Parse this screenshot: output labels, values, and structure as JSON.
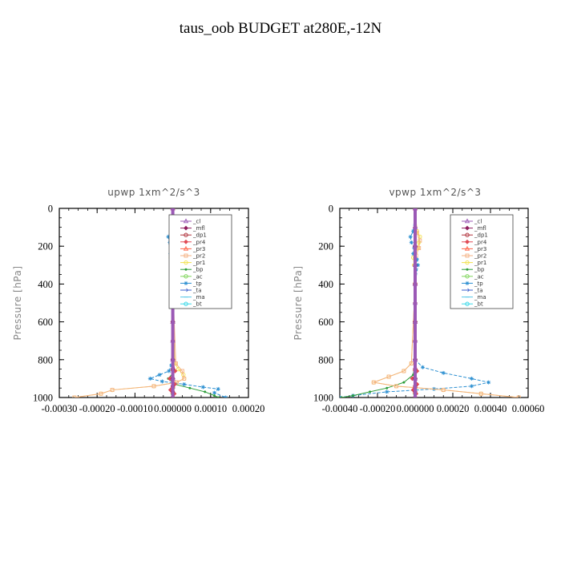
{
  "suptitle": "taus_oob  BUDGET at280E,-12N",
  "colors": {
    "_cl": "#9b59b6",
    "_mfl": "#8e1c5e",
    "_dp1": "#b0303a",
    "_pr4": "#e04a55",
    "_pr3": "#ff6347",
    "_pr2": "#f4b183",
    "_pr1": "#f2e14c",
    "_bp": "#2e9e3a",
    "_ac": "#7fd65a",
    "_tp": "#2b8fd1",
    "_ta": "#3a5fcd",
    "_ma": "#55c6e8",
    "_bt": "#38d8e8"
  },
  "chart_data": [
    {
      "type": "line",
      "title": "upwp   1xm^2/s^3",
      "ylabel": "Pressure [hPa]",
      "y_inverted": true,
      "ylim": [
        0,
        1000
      ],
      "xlim": [
        -0.0003,
        0.0002
      ],
      "xticks": [
        "-0.00030",
        "-0.00020",
        "-0.00010",
        "0.000000",
        "0.00010",
        "0.00020"
      ],
      "yticks": [
        "0",
        "200",
        "400",
        "600",
        "800",
        "1000"
      ],
      "legend_position": "top-right",
      "legend": [
        "_cl",
        "_mfl",
        "_dp1",
        "_pr4",
        "_pr3",
        "_pr2",
        "_pr1",
        "_bp",
        "_ac",
        "_tp",
        "_ta",
        "_ma",
        "_bt"
      ],
      "series": [
        {
          "name": "_cl",
          "x": [
            0,
            0,
            0,
            0,
            0,
            0,
            0,
            0,
            0,
            0,
            0
          ],
          "y": [
            0,
            100,
            200,
            300,
            400,
            500,
            600,
            700,
            800,
            900,
            1000
          ]
        },
        {
          "name": "_mfl",
          "x": [
            0,
            0,
            0,
            0,
            0,
            0,
            0,
            0,
            0,
            0,
            0
          ],
          "y": [
            0,
            100,
            200,
            300,
            400,
            500,
            600,
            700,
            800,
            900,
            1000
          ]
        },
        {
          "name": "_dp1",
          "x": [
            0,
            0,
            0,
            0,
            0,
            0,
            0,
            0,
            0,
            0
          ],
          "y": [
            0,
            200,
            400,
            600,
            800,
            850,
            900,
            940,
            970,
            1000
          ]
        },
        {
          "name": "_pr4",
          "x": [
            0,
            0,
            0,
            0,
            0,
            6e-06,
            -8e-06,
            5e-06,
            -6e-06,
            4e-06,
            0
          ],
          "y": [
            0,
            200,
            400,
            600,
            800,
            860,
            900,
            930,
            960,
            980,
            1000
          ]
        },
        {
          "name": "_pr3",
          "x": [
            0,
            0,
            0,
            0,
            0,
            0,
            0,
            0,
            0,
            0
          ],
          "y": [
            0,
            200,
            400,
            600,
            800,
            850,
            900,
            940,
            970,
            1000
          ]
        },
        {
          "name": "_pr2",
          "x": [
            0,
            5e-06,
            1.2e-05,
            8e-06,
            2e-06,
            0,
            8e-06,
            2.5e-05,
            3e-05,
            1e-05,
            -5e-05,
            -0.00016,
            -0.00019,
            -0.00026
          ],
          "y": [
            0,
            130,
            170,
            210,
            250,
            400,
            820,
            860,
            900,
            920,
            940,
            960,
            980,
            1000
          ]
        },
        {
          "name": "_pr1",
          "x": [
            0,
            5e-06,
            1.2e-05,
            1e-05,
            8e-06,
            -5e-06,
            -2e-06,
            0,
            5e-06,
            1.5e-05,
            2.8e-05,
            3e-05,
            1e-05,
            -5e-05,
            -0.00016,
            -0.00019,
            -0.00026
          ],
          "y": [
            0,
            120,
            150,
            180,
            210,
            260,
            300,
            400,
            820,
            850,
            880,
            900,
            920,
            940,
            960,
            980,
            1000
          ]
        },
        {
          "name": "_bp",
          "x": [
            0,
            0,
            0,
            0,
            0,
            5e-06,
            -1.2e-05,
            5e-06,
            4.5e-05,
            8.5e-05,
            0.00011,
            0.00012
          ],
          "y": [
            0,
            200,
            400,
            600,
            800,
            860,
            900,
            930,
            950,
            970,
            990,
            1000
          ]
        },
        {
          "name": "_ac",
          "x": [
            0,
            0,
            0,
            0,
            0,
            0,
            0,
            0,
            0
          ],
          "y": [
            0,
            200,
            400,
            600,
            800,
            900,
            950,
            980,
            1000
          ]
        },
        {
          "name": "_tp",
          "x": [
            0,
            -5e-06,
            -1.2e-05,
            -8e-06,
            -2e-06,
            -6e-06,
            5e-06,
            8e-06,
            0,
            0,
            -4e-06,
            -1e-05,
            -3.5e-05,
            -6e-05,
            -2.8e-05,
            3e-05,
            8e-05,
            0.00012,
            0.00011,
            0.00014
          ],
          "y": [
            0,
            120,
            150,
            180,
            210,
            240,
            270,
            300,
            400,
            800,
            830,
            860,
            880,
            900,
            915,
            930,
            945,
            955,
            975,
            1000
          ]
        },
        {
          "name": "_ta",
          "x": [
            0,
            0,
            0,
            0,
            0,
            0,
            0,
            0,
            0
          ],
          "y": [
            0,
            200,
            400,
            600,
            800,
            900,
            950,
            980,
            1000
          ]
        },
        {
          "name": "_ma",
          "x": [
            0,
            0,
            0,
            0,
            0,
            0,
            0,
            0,
            0
          ],
          "y": [
            0,
            200,
            400,
            600,
            800,
            900,
            950,
            980,
            1000
          ]
        },
        {
          "name": "_bt",
          "x": [
            0,
            0,
            0,
            0,
            0,
            0,
            0,
            0,
            0
          ],
          "y": [
            0,
            200,
            400,
            600,
            800,
            900,
            950,
            980,
            1000
          ]
        }
      ]
    },
    {
      "type": "line",
      "title": "vpwp   1xm^2/s^3",
      "ylabel": "Pressure [hPa]",
      "y_inverted": true,
      "ylim": [
        0,
        1000
      ],
      "xlim": [
        -0.0004,
        0.0006
      ],
      "xticks": [
        "-0.00040",
        "-0.00020",
        "0.000000",
        "0.00020",
        "0.00040",
        "0.00060"
      ],
      "yticks": [
        "0",
        "200",
        "400",
        "600",
        "800",
        "1000"
      ],
      "legend_position": "top-right",
      "legend": [
        "_cl",
        "_mfl",
        "_dp1",
        "_pr4",
        "_pr3",
        "_pr2",
        "_pr1",
        "_bp",
        "_ac",
        "_tp",
        "_ta",
        "_ma",
        "_bt"
      ],
      "series": [
        {
          "name": "_cl",
          "x": [
            0,
            0,
            0,
            0,
            0,
            0,
            0,
            0,
            0,
            0,
            0
          ],
          "y": [
            0,
            100,
            200,
            300,
            400,
            500,
            600,
            700,
            800,
            900,
            1000
          ]
        },
        {
          "name": "_mfl",
          "x": [
            0,
            0,
            0,
            0,
            0,
            0,
            0,
            0,
            0,
            0,
            0
          ],
          "y": [
            0,
            100,
            200,
            300,
            400,
            500,
            600,
            700,
            800,
            900,
            1000
          ]
        },
        {
          "name": "_dp1",
          "x": [
            0,
            0,
            0,
            0,
            0,
            0,
            0,
            0,
            0,
            0
          ],
          "y": [
            0,
            200,
            400,
            600,
            800,
            850,
            900,
            940,
            970,
            1000
          ]
        },
        {
          "name": "_pr4",
          "x": [
            0,
            0,
            0,
            0,
            0,
            1e-05,
            -1.5e-05,
            1e-05,
            -1e-05,
            5e-06,
            0
          ],
          "y": [
            0,
            200,
            400,
            600,
            800,
            860,
            900,
            930,
            960,
            980,
            1000
          ]
        },
        {
          "name": "_pr3",
          "x": [
            0,
            0,
            0,
            0,
            0,
            0,
            0,
            0,
            0,
            0
          ],
          "y": [
            0,
            200,
            400,
            600,
            800,
            850,
            900,
            940,
            970,
            1000
          ]
        },
        {
          "name": "_pr2",
          "x": [
            0,
            1e-05,
            2.5e-05,
            2e-05,
            5e-06,
            0,
            -2e-05,
            -6e-05,
            -0.00014,
            -0.00022,
            -0.0001,
            0.00015,
            0.00035,
            0.00055
          ],
          "y": [
            0,
            130,
            170,
            210,
            250,
            400,
            820,
            860,
            890,
            920,
            940,
            960,
            980,
            1000
          ]
        },
        {
          "name": "_pr1",
          "x": [
            0,
            1e-05,
            2.5e-05,
            2e-05,
            1.5e-05,
            -1e-05,
            -5e-06,
            0,
            -2e-05,
            -6e-05,
            -0.00014,
            -0.00022,
            -0.0001,
            0.00015,
            0.00035,
            0.00055
          ],
          "y": [
            0,
            120,
            150,
            180,
            210,
            260,
            300,
            400,
            820,
            860,
            890,
            920,
            940,
            960,
            980,
            1000
          ]
        },
        {
          "name": "_bp",
          "x": [
            0,
            0,
            0,
            0,
            0,
            -1e-05,
            -6e-05,
            -0.00015,
            -0.00024,
            -0.00033,
            -0.00039
          ],
          "y": [
            0,
            200,
            400,
            600,
            800,
            880,
            920,
            950,
            970,
            990,
            1000
          ]
        },
        {
          "name": "_ac",
          "x": [
            0,
            0,
            0,
            0,
            0,
            0,
            0,
            0,
            0
          ],
          "y": [
            0,
            200,
            400,
            600,
            800,
            900,
            950,
            980,
            1000
          ]
        },
        {
          "name": "_tp",
          "x": [
            0,
            -1e-05,
            -2.5e-05,
            -2e-05,
            -5e-06,
            -1e-05,
            1e-05,
            1.5e-05,
            0,
            0,
            4e-05,
            0.00015,
            0.0003,
            0.00039,
            0.0003,
            0.0001,
            -0.00015,
            -0.00033,
            -0.0004
          ],
          "y": [
            0,
            120,
            150,
            180,
            210,
            240,
            270,
            300,
            400,
            800,
            840,
            870,
            900,
            920,
            940,
            955,
            970,
            990,
            1000
          ]
        },
        {
          "name": "_ta",
          "x": [
            0,
            0,
            0,
            0,
            0,
            0,
            0,
            0,
            0
          ],
          "y": [
            0,
            200,
            400,
            600,
            800,
            900,
            950,
            980,
            1000
          ]
        },
        {
          "name": "_ma",
          "x": [
            0,
            0,
            0,
            0,
            0,
            0,
            0,
            0,
            0
          ],
          "y": [
            0,
            200,
            400,
            600,
            800,
            900,
            950,
            980,
            1000
          ]
        },
        {
          "name": "_bt",
          "x": [
            0,
            0,
            0,
            0,
            0,
            0,
            0,
            0,
            0
          ],
          "y": [
            0,
            200,
            400,
            600,
            800,
            900,
            950,
            980,
            1000
          ]
        }
      ]
    }
  ]
}
